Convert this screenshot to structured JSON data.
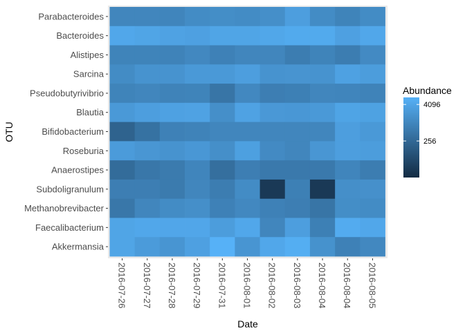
{
  "chart_data": {
    "type": "heatmap",
    "xlabel": "Date",
    "ylabel": "OTU",
    "x": [
      "2016-07-26",
      "2016-07-27",
      "2016-07-28",
      "2016-07-29",
      "2016-07-31",
      "2016-08-01",
      "2016-08-02",
      "2016-08-03",
      "2016-08-04",
      "2016-08-04",
      "2016-08-05"
    ],
    "y": [
      "Parabacteroides",
      "Bacteroides",
      "Alistipes",
      "Sarcina",
      "Pseudobutyrivibrio",
      "Blautia",
      "Bifidobacterium",
      "Roseburia",
      "Anaerostipes",
      "Subdoligranulum",
      "Methanobrevibacter",
      "Faecalibacterium",
      "Akkermansia"
    ],
    "z": [
      [
        1000,
        1000,
        950,
        1300,
        1400,
        1300,
        1500,
        3000,
        1300,
        900,
        1300
      ],
      [
        4500,
        4000,
        3600,
        3300,
        4000,
        4000,
        4400,
        5000,
        5000,
        3300,
        4500
      ],
      [
        900,
        900,
        850,
        1100,
        800,
        1000,
        1000,
        650,
        900,
        650,
        1200
      ],
      [
        1300,
        1800,
        1800,
        2400,
        2400,
        3000,
        1800,
        1900,
        1800,
        3400,
        2800
      ],
      [
        900,
        1000,
        850,
        900,
        450,
        1100,
        700,
        750,
        1000,
        950,
        850
      ],
      [
        2400,
        3000,
        3400,
        3600,
        1500,
        3600,
        2300,
        2200,
        2400,
        3800,
        3500
      ],
      [
        200,
        400,
        800,
        850,
        1000,
        1000,
        1000,
        1000,
        1000,
        3000,
        2400
      ],
      [
        2600,
        2100,
        1800,
        2200,
        1500,
        3200,
        1200,
        1000,
        2100,
        3000,
        2800
      ],
      [
        300,
        500,
        600,
        950,
        350,
        700,
        550,
        550,
        550,
        950,
        650
      ],
      [
        700,
        700,
        600,
        1000,
        650,
        1300,
        30,
        750,
        30,
        1500,
        1600
      ],
      [
        500,
        1000,
        1300,
        1500,
        800,
        1100,
        800,
        700,
        450,
        1400,
        1300
      ],
      [
        4000,
        4500,
        4300,
        4300,
        2800,
        4500,
        1000,
        3000,
        750,
        5300,
        4500
      ],
      [
        4000,
        2600,
        2000,
        3300,
        7000,
        2000,
        4500,
        6000,
        1700,
        800,
        1100
      ]
    ],
    "legend": {
      "title": "Abundance",
      "placement": "right",
      "ticks": [
        256,
        4096
      ],
      "tick_labels": [
        "256",
        "4096"
      ],
      "low_color": "#132B43",
      "high_color": "#56B1F7",
      "min": 16,
      "max": 7000,
      "transform": "log2"
    },
    "panel_background": "#EBEBEB",
    "grid": false
  }
}
